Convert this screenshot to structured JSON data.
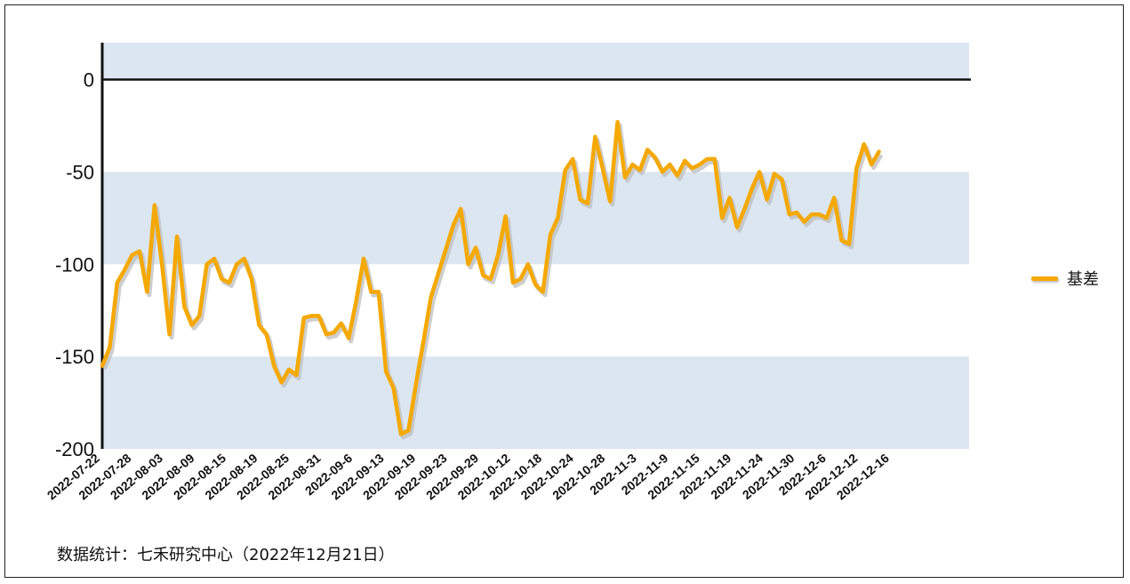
{
  "chart_data": {
    "type": "line",
    "title": "",
    "xlabel": "",
    "ylabel": "",
    "ylim": [
      -200,
      20
    ],
    "yticks": [
      0,
      -50,
      -100,
      -150,
      -200
    ],
    "bands": [
      [
        0,
        20
      ],
      [
        -100,
        -50
      ],
      [
        -200,
        -150
      ]
    ],
    "grid": false,
    "legend_position": "right",
    "series_color": "#F5A800",
    "band_color": "#DCE6F1",
    "x_tick_labels": [
      "2022-07-22",
      "2022-07-28",
      "2022-08-03",
      "2022-08-09",
      "2022-08-15",
      "2022-08-19",
      "2022-08-25",
      "2022-08-31",
      "2022-09-6",
      "2022-09-13",
      "2022-09-19",
      "2022-09-23",
      "2022-09-29",
      "2022-10-12",
      "2022-10-18",
      "2022-10-24",
      "2022-10-28",
      "2022-11-3",
      "2022-11-9",
      "2022-11-15",
      "2022-11-19",
      "2022-11-24",
      "2022-11-30",
      "2022-12-6",
      "2022-12-12",
      "2022-12-16"
    ],
    "series": [
      {
        "name": "基差",
        "values": [
          -155,
          -145,
          -110,
          -103,
          -95,
          -93,
          -115,
          -68,
          -100,
          -138,
          -85,
          -123,
          -133,
          -128,
          -100,
          -97,
          -108,
          -110,
          -100,
          -97,
          -108,
          -133,
          -138,
          -155,
          -164,
          -157,
          -160,
          -129,
          -128,
          -128,
          -138,
          -137,
          -132,
          -140,
          -120,
          -97,
          -115,
          -115,
          -158,
          -167,
          -192,
          -190,
          -165,
          -142,
          -118,
          -105,
          -92,
          -79,
          -70,
          -100,
          -91,
          -106,
          -108,
          -95,
          -74,
          -110,
          -108,
          -100,
          -111,
          -115,
          -84,
          -75,
          -49,
          -43,
          -65,
          -67,
          -31,
          -48,
          -66,
          -23,
          -53,
          -46,
          -49,
          -38,
          -42,
          -50,
          -46,
          -52,
          -44,
          -48,
          -46,
          -43,
          -43,
          -75,
          -64,
          -80,
          -70,
          -59,
          -50,
          -65,
          -51,
          -54,
          -73,
          -72,
          -77,
          -73,
          -73,
          -75,
          -64,
          -87,
          -89,
          -48,
          -35,
          -46,
          -39
        ]
      }
    ]
  },
  "legend": {
    "label": "基差"
  },
  "source": {
    "text": "数据统计：七禾研究中心（2022年12月21日）"
  }
}
